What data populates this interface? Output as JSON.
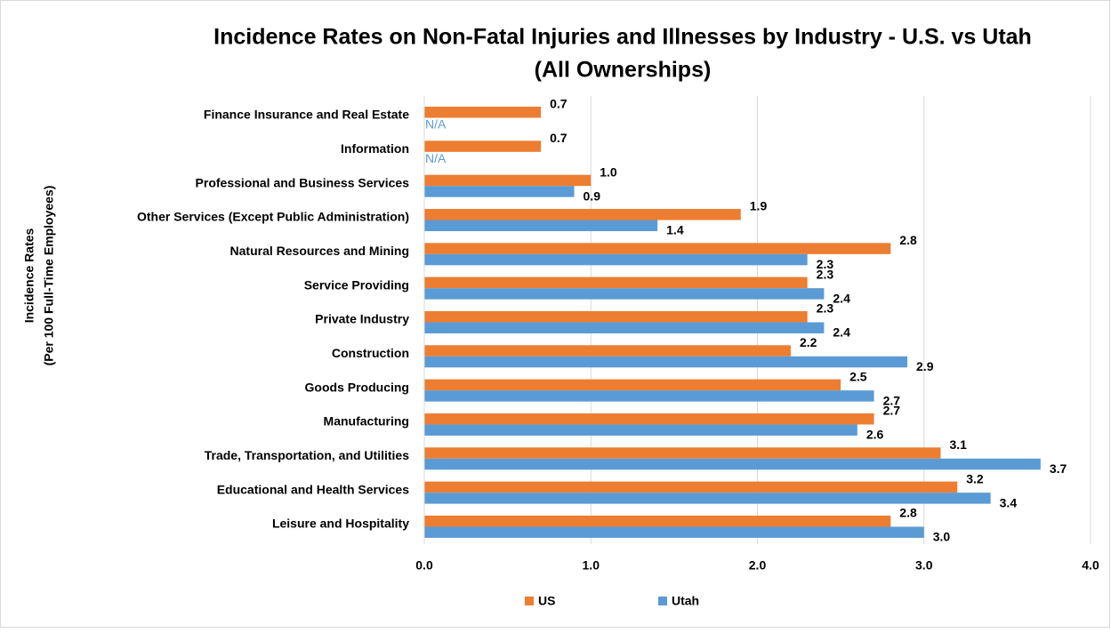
{
  "chart_data": {
    "type": "bar",
    "orientation": "horizontal",
    "title": [
      "Incidence Rates on Non-Fatal Injuries and Illnesses by Industry - U.S. vs Utah",
      "(All Ownerships)"
    ],
    "y_label": [
      "Incidence Rates",
      "(Per 100 Full-Time Employees)"
    ],
    "categories": [
      "Finance Insurance and Real Estate",
      "Information",
      "Professional and Business Services",
      "Other Services (Except Public Administration)",
      "Natural Resources and Mining",
      "Service Providing",
      "Private Industry",
      "Construction",
      "Goods Producing",
      "Manufacturing",
      "Trade, Transportation, and Utilities",
      "Educational and Health Services",
      "Leisure and Hospitality"
    ],
    "series": [
      {
        "name": "US",
        "color": "#ed7d31",
        "values": [
          0.7,
          0.7,
          1.0,
          1.9,
          2.8,
          2.3,
          2.3,
          2.2,
          2.5,
          2.7,
          3.1,
          3.2,
          2.8
        ],
        "value_labels": [
          "0.7",
          "0.7",
          "1.0",
          "1.9",
          "2.8",
          "2.3",
          "2.3",
          "2.2",
          "2.5",
          "2.7",
          "3.1",
          "3.2",
          "2.8"
        ]
      },
      {
        "name": "Utah",
        "color": "#5b9bd5",
        "values": [
          null,
          null,
          0.9,
          1.4,
          2.3,
          2.4,
          2.4,
          2.9,
          2.7,
          2.6,
          3.7,
          3.4,
          3.0
        ],
        "value_labels": [
          "N/A",
          "N/A",
          "0.9",
          "1.4",
          "2.3",
          "2.4",
          "2.4",
          "2.9",
          "2.7",
          "2.6",
          "3.7",
          "3.4",
          "3.0"
        ]
      }
    ],
    "xlim": [
      0,
      4
    ],
    "xticks": [
      {
        "value": 0,
        "label": "0.0"
      },
      {
        "value": 1,
        "label": "1.0"
      },
      {
        "value": 2,
        "label": "2.0"
      },
      {
        "value": 3,
        "label": "3.0"
      },
      {
        "value": 4,
        "label": "4.0"
      }
    ],
    "grid": true,
    "legend": "bottom"
  }
}
